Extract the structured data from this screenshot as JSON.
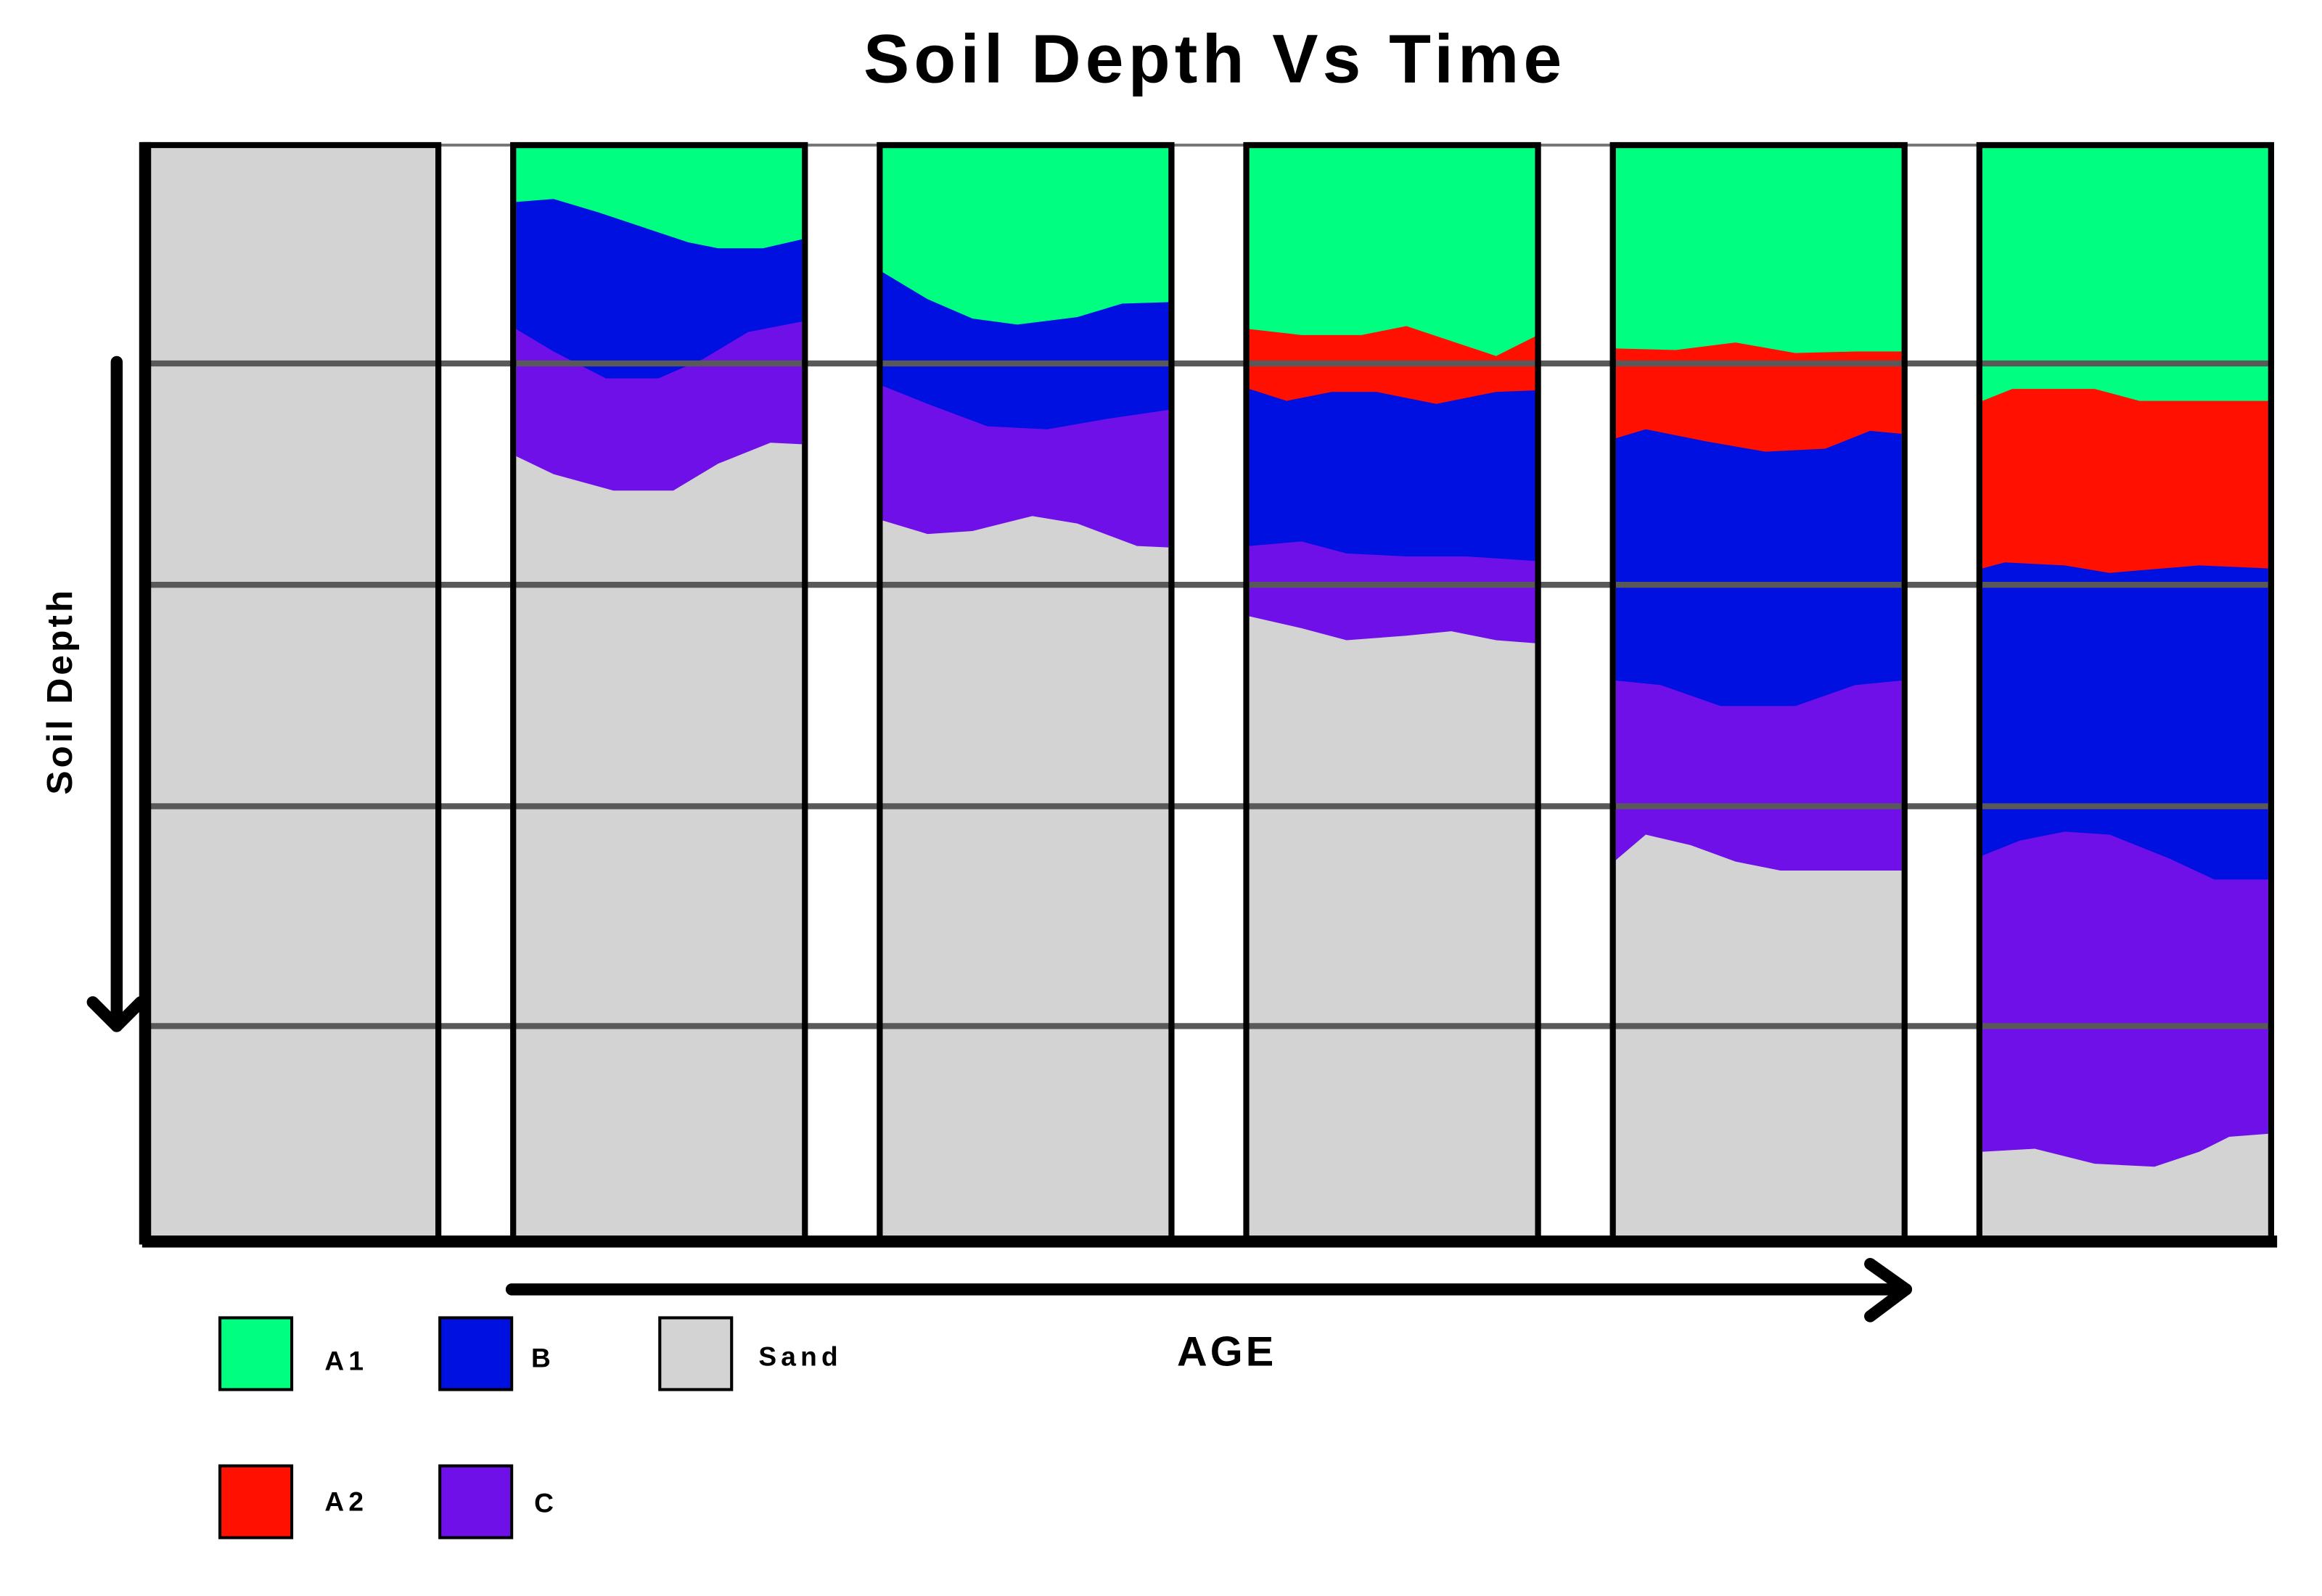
{
  "header": {
    "title": "Soil Depth Vs Time"
  },
  "axes": {
    "y_label": "Soil Depth",
    "x_label": "AGE"
  },
  "legend": [
    {
      "label": "A1",
      "color": "#00ff80"
    },
    {
      "label": "B",
      "color": "#0010e0"
    },
    {
      "label": "Sand",
      "color": "#d3d3d3"
    },
    {
      "label": "A2",
      "color": "#ff1000"
    },
    {
      "label": "C",
      "color": "#7010e8"
    }
  ]
}
